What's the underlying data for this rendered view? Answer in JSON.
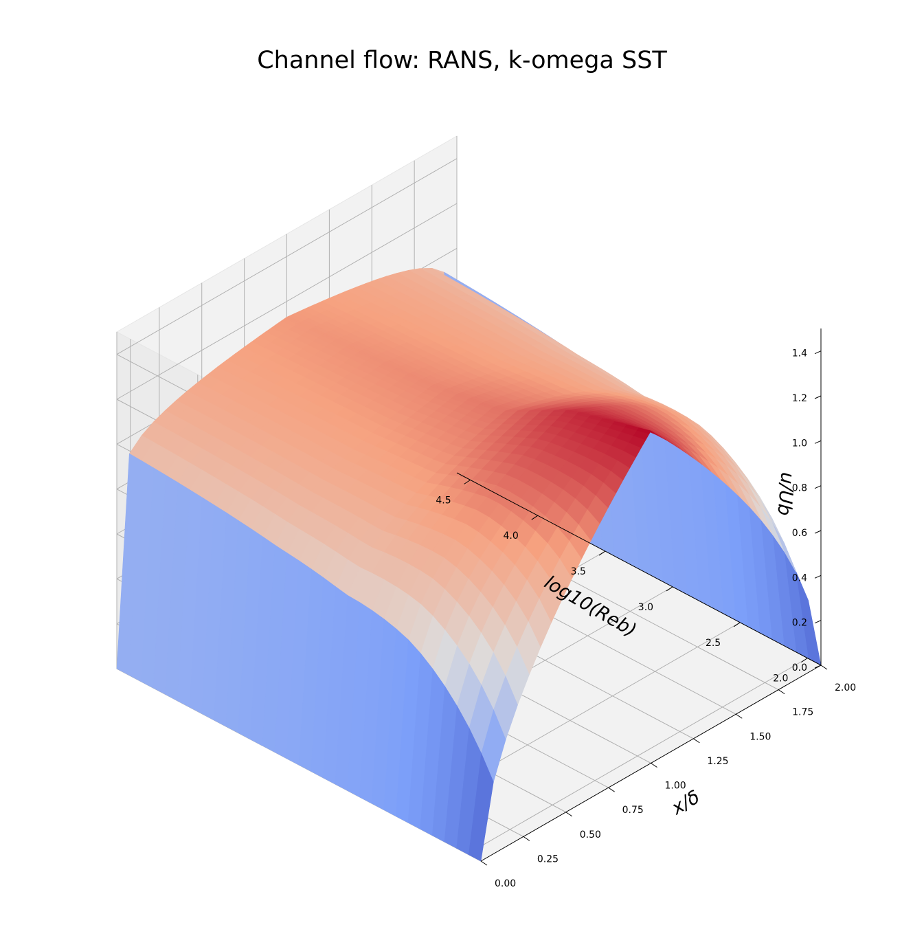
{
  "chart_data": {
    "type": "surface",
    "title": "Channel flow: RANS, k-omega SST",
    "xlabel": "x/δ",
    "ylabel": "log10(Reb)",
    "zlabel": "u/Ub",
    "x_range": [
      0,
      2
    ],
    "y_range": [
      1.9,
      4.6
    ],
    "z_range": [
      0,
      1.5
    ],
    "x_ticks": [
      "0.00",
      "0.25",
      "0.50",
      "0.75",
      "1.00",
      "1.25",
      "1.50",
      "1.75",
      "2.00"
    ],
    "y_ticks": [
      "2.0",
      "2.5",
      "3.0",
      "3.5",
      "4.0",
      "4.5"
    ],
    "z_ticks": [
      "0.0",
      "0.2",
      "0.4",
      "0.6",
      "0.8",
      "1.0",
      "1.2",
      "1.4"
    ],
    "colormap": "coolwarm",
    "grid": true,
    "centerline_velocity": [
      {
        "log10_Reb": 1.9,
        "u_Ub": 1.48
      },
      {
        "log10_Reb": 2.5,
        "u_Ub": 1.38
      },
      {
        "log10_Reb": 3.0,
        "u_Ub": 1.22
      },
      {
        "log10_Reb": 3.5,
        "u_Ub": 1.17
      },
      {
        "log10_Reb": 4.0,
        "u_Ub": 1.15
      },
      {
        "log10_Reb": 4.6,
        "u_Ub": 1.13
      }
    ]
  }
}
